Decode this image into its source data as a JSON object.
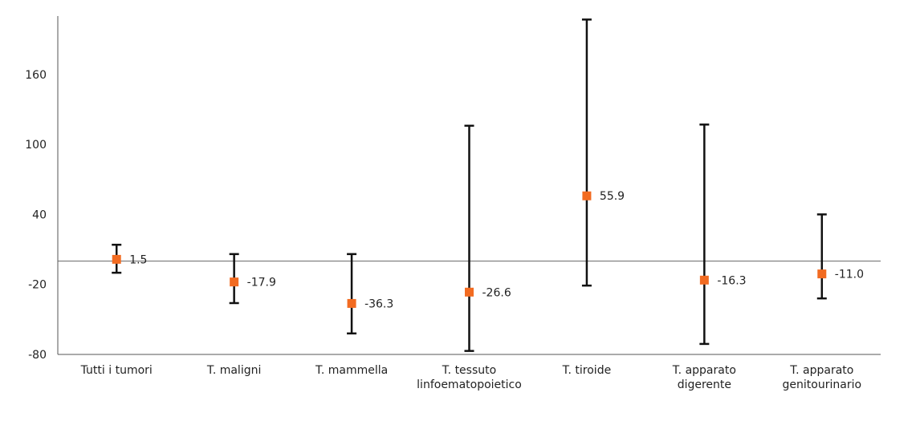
{
  "chart_data": {
    "type": "scatter",
    "title": "",
    "xlabel": "",
    "ylabel": "",
    "categories": [
      [
        "Tutti i tumori"
      ],
      [
        "T. maligni"
      ],
      [
        "T. mammella"
      ],
      [
        "T. tessuto",
        "linfoematopoietico"
      ],
      [
        "T. tiroide"
      ],
      [
        "T. apparato",
        "digerente"
      ],
      [
        "T. apparato",
        "genitourinario"
      ]
    ],
    "values": [
      1.5,
      -17.9,
      -36.3,
      -26.6,
      55.9,
      -16.3,
      -11.0
    ],
    "value_labels": [
      "1.5",
      "-17.9",
      "-36.3",
      "-26.6",
      "55.9",
      "-16.3",
      "-11.0"
    ],
    "lower": [
      -10,
      -36,
      -62,
      -77,
      -21,
      -71,
      -32
    ],
    "upper": [
      14,
      6,
      6,
      116,
      207,
      117,
      40
    ],
    "yticks": [
      -80,
      -20,
      40,
      100,
      160
    ],
    "ylim": [
      -80,
      210
    ],
    "reference_line": 0,
    "grid": false,
    "colors": {
      "marker": "#F26B21",
      "errorbar": "#111111",
      "axis": "#555555",
      "reference": "#666666"
    }
  }
}
